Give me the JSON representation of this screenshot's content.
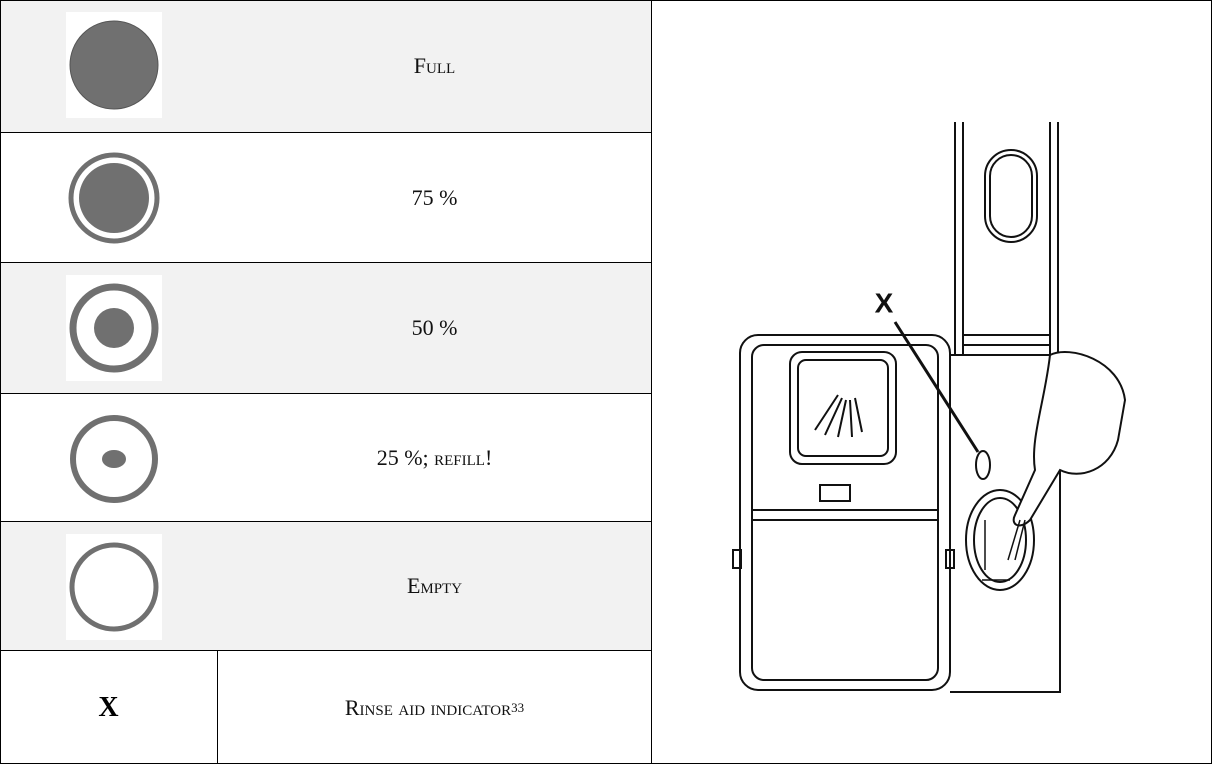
{
  "table": {
    "rows": [
      {
        "label": "Full"
      },
      {
        "label": "75 %"
      },
      {
        "label": "50 %"
      },
      {
        "label": "25 %; refill!"
      },
      {
        "label": "Empty"
      }
    ],
    "legend": {
      "symbol": "X",
      "label": "Rinse aid indicator",
      "footnote": "33"
    }
  },
  "figure": {
    "callout": "X"
  }
}
